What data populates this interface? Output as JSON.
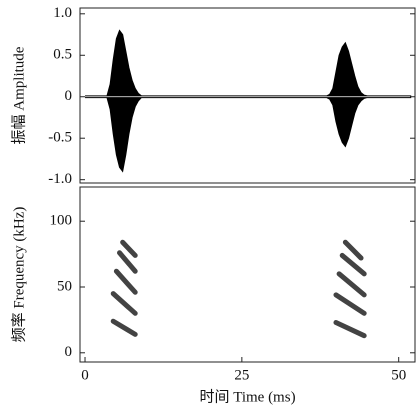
{
  "chart_data": [
    {
      "type": "waveform",
      "ylabel": "振幅 Amplitude",
      "x": [
        0,
        3.5,
        4,
        4.5,
        5,
        5.5,
        6,
        6.5,
        7,
        7.5,
        8,
        8.5,
        9,
        38.5,
        39,
        39.5,
        40,
        40.5,
        41,
        41.5,
        42,
        42.5,
        43,
        43.5,
        44,
        44.5,
        45,
        52
      ],
      "series": [
        {
          "color": "#000000",
          "values": [
            0.01,
            0.01,
            0.15,
            0.45,
            0.7,
            0.8,
            0.75,
            0.55,
            0.35,
            0.2,
            0.1,
            0.04,
            0.01,
            0.01,
            0.03,
            0.1,
            0.3,
            0.5,
            0.6,
            0.65,
            0.55,
            0.4,
            0.25,
            0.12,
            0.05,
            0.02,
            0.01,
            0.01
          ]
        },
        {
          "color": "#000000",
          "values": [
            -0.01,
            -0.01,
            -0.15,
            -0.45,
            -0.7,
            -0.85,
            -0.9,
            -0.7,
            -0.45,
            -0.25,
            -0.12,
            -0.05,
            -0.01,
            -0.01,
            -0.03,
            -0.1,
            -0.3,
            -0.45,
            -0.55,
            -0.6,
            -0.5,
            -0.35,
            -0.2,
            -0.1,
            -0.05,
            -0.02,
            -0.01,
            -0.01
          ]
        }
      ],
      "xlim": [
        -0.8,
        52.6
      ],
      "ylim": [
        -1.04,
        1.07
      ],
      "yticks": [
        {
          "value": -1,
          "label": "-1.0"
        },
        -0.5,
        0,
        0.5,
        {
          "value": 1,
          "label": "1.0"
        }
      ]
    },
    {
      "type": "spectrogram",
      "ylabel": "频率 Frequency (kHz)",
      "xlabel": "时间 Time (ms)",
      "series": [
        {
          "color": "#222222",
          "x": [
            4.5,
            8
          ],
          "values": [
            24,
            14
          ]
        },
        {
          "color": "#222222",
          "x": [
            4.5,
            8
          ],
          "values": [
            45,
            30
          ]
        },
        {
          "color": "#222222",
          "x": [
            5,
            8
          ],
          "values": [
            62,
            46
          ]
        },
        {
          "color": "#222222",
          "x": [
            5.5,
            8
          ],
          "values": [
            76,
            62
          ]
        },
        {
          "color": "#222222",
          "x": [
            6,
            8
          ],
          "values": [
            84,
            74
          ]
        },
        {
          "color": "#222222",
          "x": [
            40,
            44.5
          ],
          "values": [
            23,
            13
          ]
        },
        {
          "color": "#222222",
          "x": [
            40,
            44.5
          ],
          "values": [
            44,
            30
          ]
        },
        {
          "color": "#222222",
          "x": [
            40.5,
            44.5
          ],
          "values": [
            60,
            44
          ]
        },
        {
          "color": "#222222",
          "x": [
            41,
            44.5
          ],
          "values": [
            74,
            60
          ]
        },
        {
          "color": "#222222",
          "x": [
            41.5,
            44
          ],
          "values": [
            84,
            72
          ]
        }
      ],
      "xlim": [
        -0.8,
        52.6
      ],
      "ylim": [
        -7,
        126
      ],
      "xticks": [
        0,
        25,
        50
      ],
      "yticks": [
        0,
        50,
        100
      ]
    }
  ]
}
